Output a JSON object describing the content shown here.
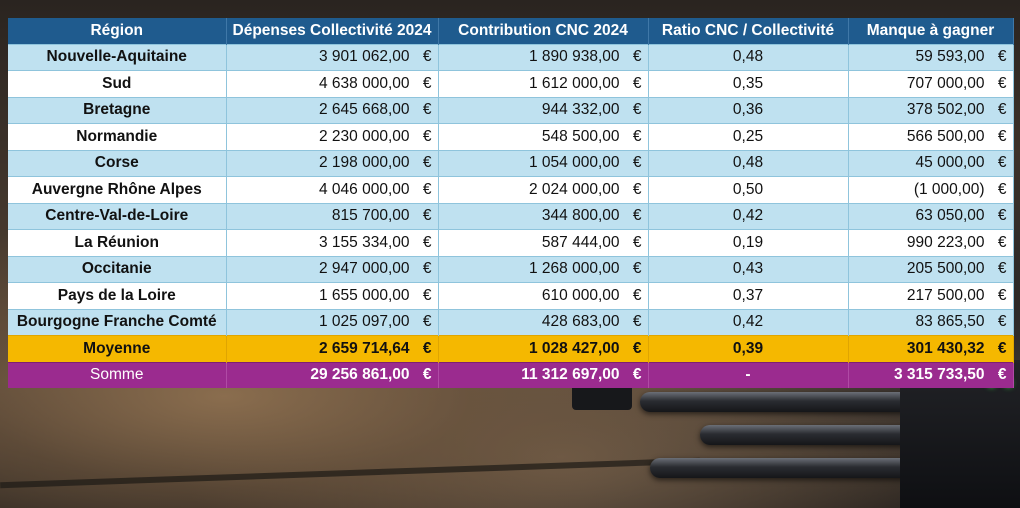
{
  "table": {
    "headers": [
      "Région",
      "Dépenses Collectivité 2024",
      "Contribution CNC 2024",
      "Ratio CNC / Collectivité",
      "Manque à gagner"
    ],
    "currency": "€",
    "rows": [
      {
        "region": "Nouvelle-Aquitaine",
        "depenses": "3 901 062,00",
        "contribution": "1 890 938,00",
        "ratio": "0,48",
        "manque": "59 593,00"
      },
      {
        "region": "Sud",
        "depenses": "4 638 000,00",
        "contribution": "1 612 000,00",
        "ratio": "0,35",
        "manque": "707 000,00"
      },
      {
        "region": "Bretagne",
        "depenses": "2 645 668,00",
        "contribution": "944 332,00",
        "ratio": "0,36",
        "manque": "378 502,00"
      },
      {
        "region": "Normandie",
        "depenses": "2 230 000,00",
        "contribution": "548 500,00",
        "ratio": "0,25",
        "manque": "566 500,00"
      },
      {
        "region": "Corse",
        "depenses": "2 198 000,00",
        "contribution": "1 054 000,00",
        "ratio": "0,48",
        "manque": "45 000,00"
      },
      {
        "region": "Auvergne Rhône Alpes",
        "depenses": "4 046 000,00",
        "contribution": "2 024 000,00",
        "ratio": "0,50",
        "manque": "(1 000,00)"
      },
      {
        "region": "Centre-Val-de-Loire",
        "depenses": "815 700,00",
        "contribution": "344 800,00",
        "ratio": "0,42",
        "manque": "63 050,00"
      },
      {
        "region": "La Réunion",
        "depenses": "3 155 334,00",
        "contribution": "587 444,00",
        "ratio": "0,19",
        "manque": "990 223,00"
      },
      {
        "region": "Occitanie",
        "depenses": "2 947 000,00",
        "contribution": "1 268 000,00",
        "ratio": "0,43",
        "manque": "205 500,00"
      },
      {
        "region": "Pays de la Loire",
        "depenses": "1 655 000,00",
        "contribution": "610 000,00",
        "ratio": "0,37",
        "manque": "217 500,00"
      },
      {
        "region": "Bourgogne Franche Comté",
        "depenses": "1 025 097,00",
        "contribution": "428 683,00",
        "ratio": "0,42",
        "manque": "83 865,50"
      }
    ],
    "moyenne": {
      "label": "Moyenne",
      "depenses": "2 659 714,64",
      "contribution": "1 028 427,00",
      "ratio": "0,39",
      "manque": "301 430,32"
    },
    "somme": {
      "label": "Somme",
      "depenses": "29 256 861,00",
      "contribution": "11 312 697,00",
      "ratio": "-",
      "manque": "3 315 733,50"
    }
  },
  "colors": {
    "header": "#1f5b8e",
    "row_alt": "#bfe1f0",
    "moyenne": "#f5b800",
    "somme": "#9b2b8f"
  }
}
